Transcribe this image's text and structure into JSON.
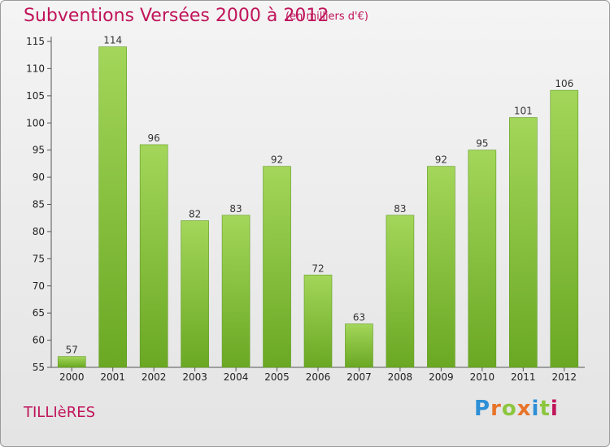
{
  "header": {
    "title": "Subventions Versées 2000 à 2012",
    "subtitle": "(en milliers d'€)"
  },
  "footer": {
    "commune": "TILLIèRES",
    "logo_letters": [
      "P",
      "r",
      "o",
      "x",
      "i",
      "t",
      "i"
    ],
    "logo_colors": [
      "#2d8fd6",
      "#e8742a",
      "#8cc63f",
      "#e8742a",
      "#2d8fd6",
      "#8cc63f",
      "#c0145a"
    ]
  },
  "chart_data": {
    "type": "bar",
    "categories": [
      "2000",
      "2001",
      "2002",
      "2003",
      "2004",
      "2005",
      "2006",
      "2007",
      "2008",
      "2009",
      "2010",
      "2011",
      "2012"
    ],
    "values": [
      57,
      114,
      96,
      82,
      83,
      92,
      72,
      63,
      83,
      92,
      95,
      101,
      106
    ],
    "data_labels": [
      "57",
      "114",
      "96",
      "82",
      "83",
      "92",
      "72",
      "63",
      "83",
      "92",
      "95",
      "101",
      "106"
    ],
    "yticks": [
      55,
      60,
      65,
      70,
      75,
      80,
      85,
      90,
      95,
      100,
      105,
      110,
      115
    ],
    "ylim": [
      55,
      115
    ],
    "grid": false,
    "bar_color_light": "#a3d65a",
    "bar_color_dark": "#6aa823"
  }
}
